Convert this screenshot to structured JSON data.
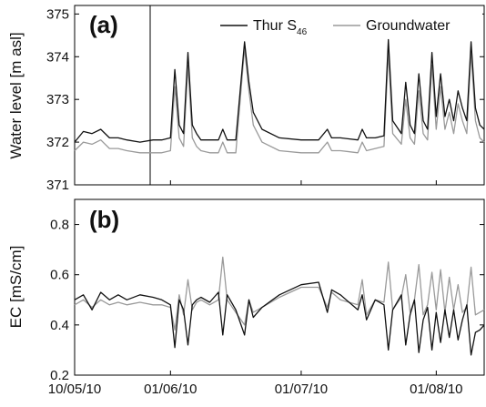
{
  "chart_data": [
    {
      "type": "line",
      "panel_label": "(a)",
      "ylabel": "Water level [m asl]",
      "ylim": [
        371,
        375.2
      ],
      "yticks": [
        371,
        372,
        373,
        374,
        375
      ],
      "legend": {
        "placement": "top-right",
        "entries": [
          "Thur S46",
          "Groundwater"
        ]
      },
      "series": [
        {
          "name": "Thur S46",
          "color": "#111111",
          "x": [
            "2010-05-10",
            "2010-05-12",
            "2010-05-14",
            "2010-05-16",
            "2010-05-18",
            "2010-05-20",
            "2010-05-22",
            "2010-05-25",
            "2010-05-28",
            "2010-05-30",
            "2010-06-01",
            "2010-06-02",
            "2010-06-03",
            "2010-06-04",
            "2010-06-05",
            "2010-06-06",
            "2010-06-07",
            "2010-06-08",
            "2010-06-10",
            "2010-06-12",
            "2010-06-13",
            "2010-06-14",
            "2010-06-16",
            "2010-06-18",
            "2010-06-19",
            "2010-06-20",
            "2010-06-22",
            "2010-06-26",
            "2010-07-01",
            "2010-07-05",
            "2010-07-07",
            "2010-07-08",
            "2010-07-10",
            "2010-07-14",
            "2010-07-15",
            "2010-07-16",
            "2010-07-18",
            "2010-07-20",
            "2010-07-21",
            "2010-07-22",
            "2010-07-24",
            "2010-07-25",
            "2010-07-26",
            "2010-07-27",
            "2010-07-28",
            "2010-07-29",
            "2010-07-30",
            "2010-07-31",
            "2010-08-01",
            "2010-08-02",
            "2010-08-03",
            "2010-08-04",
            "2010-08-05",
            "2010-08-06",
            "2010-08-07",
            "2010-08-08",
            "2010-08-09",
            "2010-08-10",
            "2010-08-11",
            "2010-08-12"
          ],
          "values": [
            372.0,
            372.25,
            372.2,
            372.3,
            372.1,
            372.1,
            372.05,
            372.0,
            372.05,
            372.05,
            372.1,
            373.7,
            372.4,
            372.2,
            374.1,
            372.4,
            372.2,
            372.05,
            372.05,
            372.05,
            372.3,
            372.05,
            372.05,
            374.35,
            373.4,
            372.7,
            372.3,
            372.1,
            372.05,
            372.05,
            372.3,
            372.1,
            372.1,
            372.05,
            372.3,
            372.1,
            372.1,
            372.15,
            374.4,
            372.5,
            372.2,
            373.4,
            372.4,
            372.2,
            373.6,
            372.5,
            372.3,
            374.1,
            372.6,
            373.6,
            372.6,
            373.0,
            372.5,
            373.2,
            372.8,
            372.5,
            374.35,
            372.8,
            372.4,
            372.3
          ]
        },
        {
          "name": "Groundwater",
          "color": "#9a9a9a",
          "x": [
            "2010-05-10",
            "2010-05-12",
            "2010-05-14",
            "2010-05-16",
            "2010-05-18",
            "2010-05-20",
            "2010-05-22",
            "2010-05-25",
            "2010-05-28",
            "2010-05-30",
            "2010-06-01",
            "2010-06-02",
            "2010-06-03",
            "2010-06-04",
            "2010-06-05",
            "2010-06-06",
            "2010-06-07",
            "2010-06-08",
            "2010-06-10",
            "2010-06-12",
            "2010-06-13",
            "2010-06-14",
            "2010-06-16",
            "2010-06-18",
            "2010-06-19",
            "2010-06-20",
            "2010-06-22",
            "2010-06-26",
            "2010-07-01",
            "2010-07-05",
            "2010-07-07",
            "2010-07-08",
            "2010-07-10",
            "2010-07-14",
            "2010-07-15",
            "2010-07-16",
            "2010-07-18",
            "2010-07-20",
            "2010-07-21",
            "2010-07-22",
            "2010-07-24",
            "2010-07-25",
            "2010-07-26",
            "2010-07-27",
            "2010-07-28",
            "2010-07-29",
            "2010-07-30",
            "2010-07-31",
            "2010-08-01",
            "2010-08-02",
            "2010-08-03",
            "2010-08-04",
            "2010-08-05",
            "2010-08-06",
            "2010-08-07",
            "2010-08-08",
            "2010-08-09",
            "2010-08-10",
            "2010-08-11",
            "2010-08-12"
          ],
          "values": [
            371.8,
            372.0,
            371.95,
            372.05,
            371.85,
            371.85,
            371.8,
            371.75,
            371.75,
            371.75,
            371.8,
            373.3,
            372.1,
            371.9,
            373.8,
            372.1,
            371.9,
            371.8,
            371.75,
            371.75,
            372.0,
            371.75,
            371.75,
            374.2,
            373.2,
            372.4,
            372.0,
            371.8,
            371.75,
            371.75,
            372.0,
            371.8,
            371.8,
            371.75,
            372.0,
            371.8,
            371.85,
            371.9,
            374.1,
            372.2,
            371.95,
            373.0,
            372.1,
            371.95,
            373.2,
            372.2,
            372.05,
            373.8,
            372.3,
            373.3,
            372.3,
            372.7,
            372.2,
            372.9,
            372.5,
            372.2,
            374.1,
            372.5,
            372.1,
            372.0
          ]
        }
      ]
    },
    {
      "type": "line",
      "panel_label": "(b)",
      "ylabel": "EC [mS/cm]",
      "ylim": [
        0.2,
        0.9
      ],
      "yticks": [
        "0.2",
        "0.4",
        "0.6",
        "0.8"
      ],
      "xlim": [
        "2010-05-10",
        "2010-08-12"
      ],
      "xticks": [
        "10/05/10",
        "01/06/10",
        "01/07/10",
        "01/08/10"
      ],
      "xtick_dates": [
        "2010-05-10",
        "2010-06-01",
        "2010-07-01",
        "2010-08-01"
      ],
      "series": [
        {
          "name": "Thur S46",
          "color": "#111111",
          "x": [
            "2010-05-10",
            "2010-05-12",
            "2010-05-14",
            "2010-05-16",
            "2010-05-18",
            "2010-05-20",
            "2010-05-22",
            "2010-05-25",
            "2010-05-28",
            "2010-05-30",
            "2010-06-01",
            "2010-06-02",
            "2010-06-03",
            "2010-06-04",
            "2010-06-05",
            "2010-06-06",
            "2010-06-07",
            "2010-06-08",
            "2010-06-10",
            "2010-06-12",
            "2010-06-13",
            "2010-06-14",
            "2010-06-16",
            "2010-06-18",
            "2010-06-19",
            "2010-06-20",
            "2010-06-22",
            "2010-06-26",
            "2010-07-01",
            "2010-07-05",
            "2010-07-07",
            "2010-07-08",
            "2010-07-10",
            "2010-07-14",
            "2010-07-15",
            "2010-07-16",
            "2010-07-18",
            "2010-07-20",
            "2010-07-21",
            "2010-07-22",
            "2010-07-24",
            "2010-07-25",
            "2010-07-26",
            "2010-07-27",
            "2010-07-28",
            "2010-07-29",
            "2010-07-30",
            "2010-07-31",
            "2010-08-01",
            "2010-08-02",
            "2010-08-03",
            "2010-08-04",
            "2010-08-05",
            "2010-08-06",
            "2010-08-07",
            "2010-08-08",
            "2010-08-09",
            "2010-08-10",
            "2010-08-11",
            "2010-08-12"
          ],
          "values": [
            0.5,
            0.52,
            0.46,
            0.53,
            0.5,
            0.52,
            0.5,
            0.52,
            0.51,
            0.5,
            0.48,
            0.31,
            0.5,
            0.46,
            0.32,
            0.48,
            0.5,
            0.51,
            0.49,
            0.53,
            0.36,
            0.52,
            0.46,
            0.36,
            0.5,
            0.43,
            0.47,
            0.52,
            0.56,
            0.57,
            0.45,
            0.54,
            0.52,
            0.46,
            0.52,
            0.42,
            0.5,
            0.48,
            0.3,
            0.46,
            0.52,
            0.32,
            0.44,
            0.5,
            0.29,
            0.42,
            0.47,
            0.3,
            0.45,
            0.33,
            0.46,
            0.35,
            0.46,
            0.34,
            0.42,
            0.48,
            0.28,
            0.37,
            0.38,
            0.4
          ]
        },
        {
          "name": "Groundwater",
          "color": "#9a9a9a",
          "x": [
            "2010-05-10",
            "2010-05-12",
            "2010-05-14",
            "2010-05-16",
            "2010-05-18",
            "2010-05-20",
            "2010-05-22",
            "2010-05-25",
            "2010-05-28",
            "2010-05-30",
            "2010-06-01",
            "2010-06-02",
            "2010-06-03",
            "2010-06-04",
            "2010-06-05",
            "2010-06-06",
            "2010-06-07",
            "2010-06-08",
            "2010-06-10",
            "2010-06-12",
            "2010-06-13",
            "2010-06-14",
            "2010-06-16",
            "2010-06-18",
            "2010-06-19",
            "2010-06-20",
            "2010-06-22",
            "2010-06-26",
            "2010-07-01",
            "2010-07-05",
            "2010-07-07",
            "2010-07-08",
            "2010-07-10",
            "2010-07-14",
            "2010-07-15",
            "2010-07-16",
            "2010-07-18",
            "2010-07-20",
            "2010-07-21",
            "2010-07-22",
            "2010-07-24",
            "2010-07-25",
            "2010-07-26",
            "2010-07-27",
            "2010-07-28",
            "2010-07-29",
            "2010-07-30",
            "2010-07-31",
            "2010-08-01",
            "2010-08-02",
            "2010-08-03",
            "2010-08-04",
            "2010-08-05",
            "2010-08-06",
            "2010-08-07",
            "2010-08-08",
            "2010-08-09",
            "2010-08-10",
            "2010-08-11",
            "2010-08-12"
          ],
          "values": [
            0.48,
            0.5,
            0.47,
            0.5,
            0.48,
            0.49,
            0.48,
            0.49,
            0.48,
            0.48,
            0.47,
            0.38,
            0.52,
            0.44,
            0.58,
            0.46,
            0.49,
            0.5,
            0.48,
            0.5,
            0.67,
            0.5,
            0.45,
            0.4,
            0.5,
            0.45,
            0.47,
            0.51,
            0.55,
            0.55,
            0.47,
            0.53,
            0.5,
            0.48,
            0.58,
            0.44,
            0.5,
            0.49,
            0.65,
            0.46,
            0.51,
            0.6,
            0.45,
            0.5,
            0.64,
            0.44,
            0.48,
            0.61,
            0.46,
            0.62,
            0.45,
            0.59,
            0.46,
            0.56,
            0.45,
            0.47,
            0.63,
            0.44,
            0.45,
            0.46
          ]
        }
      ]
    }
  ]
}
